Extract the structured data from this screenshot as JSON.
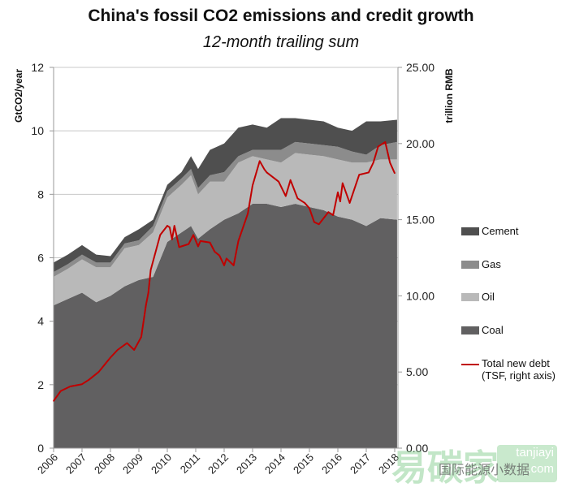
{
  "chart_data": {
    "type": "area",
    "title": "China's fossil CO2 emissions and credit growth",
    "subtitle": "12-month trailing sum",
    "ylabel": "GtCO2/year",
    "y2label": "trillion RMB",
    "ylim": [
      0,
      12
    ],
    "y2lim": [
      0,
      25
    ],
    "yticks": [
      "0",
      "2",
      "4",
      "6",
      "8",
      "10",
      "12"
    ],
    "y2ticks": [
      "0.00",
      "5.00",
      "10.00",
      "15.00",
      "20.00",
      "25.00"
    ],
    "xticks": [
      "2006",
      "2007",
      "2008",
      "2009",
      "2010",
      "2011",
      "2012",
      "2013",
      "2014",
      "2015",
      "2016",
      "2017",
      "2018"
    ],
    "grid": "horizontal",
    "legend_position": "right",
    "stacked": true,
    "x": [
      "2006-01",
      "2006-07",
      "2007-01",
      "2007-07",
      "2008-01",
      "2008-07",
      "2009-01",
      "2009-07",
      "2010-01",
      "2010-07",
      "2010-11",
      "2011-02",
      "2011-07",
      "2012-01",
      "2012-07",
      "2013-01",
      "2013-07",
      "2014-01",
      "2014-07",
      "2015-01",
      "2015-07",
      "2016-01",
      "2016-07",
      "2017-01",
      "2017-07",
      "2018-02"
    ],
    "series": [
      {
        "name": "Coal",
        "color": "#616061",
        "values": [
          4.5,
          4.7,
          4.9,
          4.6,
          4.8,
          5.1,
          5.3,
          5.4,
          6.5,
          6.8,
          7.0,
          6.6,
          6.9,
          7.2,
          7.4,
          7.7,
          7.7,
          7.6,
          7.7,
          7.6,
          7.5,
          7.3,
          7.2,
          7.0,
          7.25,
          7.2
        ]
      },
      {
        "name": "Oil",
        "color": "#b9b9b9",
        "values": [
          0.9,
          0.95,
          1.05,
          1.1,
          0.9,
          1.2,
          1.1,
          1.4,
          1.4,
          1.5,
          1.6,
          1.4,
          1.5,
          1.2,
          1.6,
          1.5,
          1.4,
          1.4,
          1.6,
          1.65,
          1.7,
          1.8,
          1.8,
          2.0,
          1.85,
          1.9
        ]
      },
      {
        "name": "Gas",
        "color": "#8c8c8c",
        "values": [
          0.15,
          0.15,
          0.15,
          0.15,
          0.15,
          0.15,
          0.15,
          0.2,
          0.2,
          0.2,
          0.2,
          0.2,
          0.2,
          0.3,
          0.2,
          0.2,
          0.3,
          0.4,
          0.35,
          0.35,
          0.35,
          0.4,
          0.35,
          0.25,
          0.45,
          0.55
        ]
      },
      {
        "name": "Cement",
        "color": "#4f4f4f",
        "values": [
          0.3,
          0.3,
          0.3,
          0.25,
          0.2,
          0.2,
          0.35,
          0.2,
          0.2,
          0.2,
          0.4,
          0.6,
          0.8,
          0.9,
          0.9,
          0.8,
          0.7,
          1.0,
          0.75,
          0.75,
          0.75,
          0.6,
          0.65,
          1.05,
          0.75,
          0.7
        ]
      }
    ],
    "line_series": {
      "name": "Total new debt",
      "name_line2": "(TSF, right axis)",
      "axis": "right",
      "color": "#c00000",
      "x": [
        "2006-01",
        "2006-04",
        "2006-08",
        "2007-01",
        "2007-04",
        "2007-08",
        "2008-01",
        "2008-04",
        "2008-08",
        "2008-11",
        "2009-02",
        "2009-04",
        "2009-05",
        "2009-06",
        "2009-10",
        "2010-01",
        "2010-02",
        "2010-03",
        "2010-04",
        "2010-06",
        "2010-10",
        "2010-12",
        "2011-02",
        "2011-03",
        "2011-07",
        "2011-09",
        "2011-11",
        "2012-01",
        "2012-02",
        "2012-05",
        "2012-07",
        "2012-09",
        "2012-11",
        "2013-01",
        "2013-04",
        "2013-06",
        "2013-07",
        "2013-12",
        "2014-03",
        "2014-05",
        "2014-08",
        "2014-11",
        "2015-01",
        "2015-03",
        "2015-05",
        "2015-09",
        "2015-11",
        "2016-01",
        "2016-02",
        "2016-03",
        "2016-06",
        "2016-10",
        "2017-02",
        "2017-04",
        "2017-06",
        "2017-09",
        "2017-11",
        "2018-01"
      ],
      "values": [
        3.1,
        3.75,
        4.05,
        4.2,
        4.5,
        5.0,
        5.95,
        6.45,
        6.9,
        6.45,
        7.3,
        9.4,
        10.2,
        11.7,
        14.0,
        14.6,
        14.5,
        13.7,
        14.6,
        13.2,
        13.4,
        14.0,
        13.25,
        13.6,
        13.5,
        12.9,
        12.65,
        12.0,
        12.45,
        12.0,
        13.6,
        14.5,
        15.4,
        17.25,
        18.85,
        18.3,
        18.1,
        17.5,
        16.55,
        17.6,
        16.4,
        16.1,
        15.75,
        14.85,
        14.7,
        15.5,
        15.3,
        16.8,
        16.2,
        17.4,
        16.1,
        17.95,
        18.1,
        18.75,
        19.8,
        20.1,
        18.75,
        18.05
      ]
    }
  },
  "legend": [
    {
      "label": "Cement",
      "color": "#4f4f4f"
    },
    {
      "label": "Gas",
      "color": "#8c8c8c"
    },
    {
      "label": "Oil",
      "color": "#b9b9b9"
    },
    {
      "label": "Coal",
      "color": "#616061"
    }
  ],
  "watermark": {
    "logo": "易碳家",
    "latin": "tanjiayi",
    "domain": ".com",
    "account": "国际能源小数据"
  }
}
